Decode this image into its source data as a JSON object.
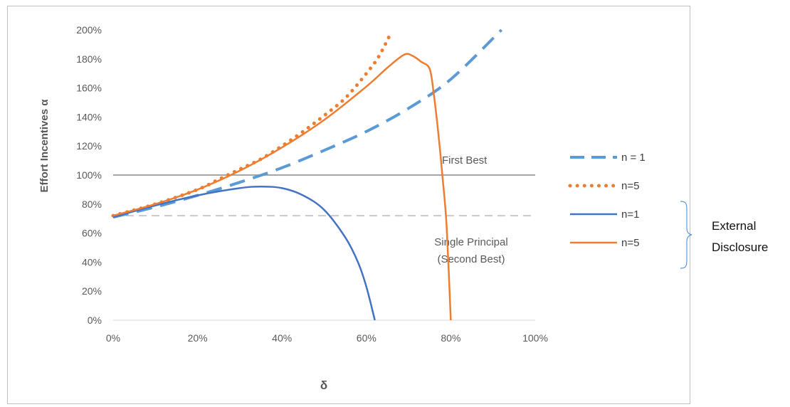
{
  "chart_data": {
    "type": "line",
    "xlabel": "δ",
    "ylabel": "Effort Incentives α",
    "xlim": [
      0,
      1
    ],
    "ylim": [
      0,
      2
    ],
    "x_ticks": [
      {
        "value": 0.0,
        "label": "0%"
      },
      {
        "value": 0.2,
        "label": "20%"
      },
      {
        "value": 0.4,
        "label": "40%"
      },
      {
        "value": 0.6,
        "label": "60%"
      },
      {
        "value": 0.8,
        "label": "80%"
      },
      {
        "value": 1.0,
        "label": "100%"
      }
    ],
    "y_ticks": [
      {
        "value": 0.0,
        "label": "0%"
      },
      {
        "value": 0.2,
        "label": "20%"
      },
      {
        "value": 0.4,
        "label": "40%"
      },
      {
        "value": 0.6,
        "label": "60%"
      },
      {
        "value": 0.8,
        "label": "80%"
      },
      {
        "value": 1.0,
        "label": "100%"
      },
      {
        "value": 1.2,
        "label": "120%"
      },
      {
        "value": 1.4,
        "label": "140%"
      },
      {
        "value": 1.6,
        "label": "160%"
      },
      {
        "value": 1.8,
        "label": "180%"
      },
      {
        "value": 2.0,
        "label": "200%"
      }
    ],
    "grid": false,
    "legend_position": "right",
    "reference_lines": [
      {
        "y": 1.0,
        "label": "First Best",
        "style": "solid",
        "color": "#a6a6a6"
      },
      {
        "y": 0.72,
        "label_lines": [
          "Single Principal",
          "(Second Best)"
        ],
        "style": "dashed",
        "color": "#c9c9c9"
      }
    ],
    "series": [
      {
        "name": "n = 1",
        "style": "dashed",
        "color": "#5b9bd5",
        "x": [
          0.0,
          0.1,
          0.2,
          0.3,
          0.4,
          0.5,
          0.6,
          0.7,
          0.8,
          0.92
        ],
        "y": [
          0.71,
          0.78,
          0.86,
          0.95,
          1.05,
          1.17,
          1.3,
          1.46,
          1.66,
          2.0
        ]
      },
      {
        "name": "n=5",
        "style": "dotted",
        "color": "#ed7d31",
        "x": [
          0.0,
          0.1,
          0.2,
          0.25,
          0.3,
          0.35,
          0.4,
          0.45,
          0.5,
          0.55,
          0.6,
          0.63,
          0.66
        ],
        "y": [
          0.72,
          0.8,
          0.9,
          0.97,
          1.04,
          1.11,
          1.2,
          1.3,
          1.41,
          1.53,
          1.7,
          1.82,
          1.99
        ]
      },
      {
        "name": "n=1",
        "style": "solid",
        "color": "#4472c4",
        "x": [
          0.0,
          0.1,
          0.2,
          0.3,
          0.35,
          0.4,
          0.45,
          0.5,
          0.55,
          0.58,
          0.6,
          0.62
        ],
        "y": [
          0.71,
          0.79,
          0.86,
          0.91,
          0.92,
          0.91,
          0.86,
          0.76,
          0.57,
          0.4,
          0.23,
          0.0
        ]
      },
      {
        "name": "n=5",
        "style": "solid",
        "color": "#ed7d31",
        "x": [
          0.0,
          0.1,
          0.2,
          0.3,
          0.4,
          0.5,
          0.6,
          0.65,
          0.69,
          0.71,
          0.73,
          0.75,
          0.76,
          0.77,
          0.78,
          0.79,
          0.8
        ],
        "y": [
          0.72,
          0.8,
          0.9,
          1.03,
          1.19,
          1.38,
          1.61,
          1.74,
          1.83,
          1.82,
          1.78,
          1.73,
          1.55,
          1.3,
          1.0,
          0.65,
          0.0
        ]
      }
    ],
    "side_annotation": [
      "External",
      "Disclosure"
    ]
  }
}
